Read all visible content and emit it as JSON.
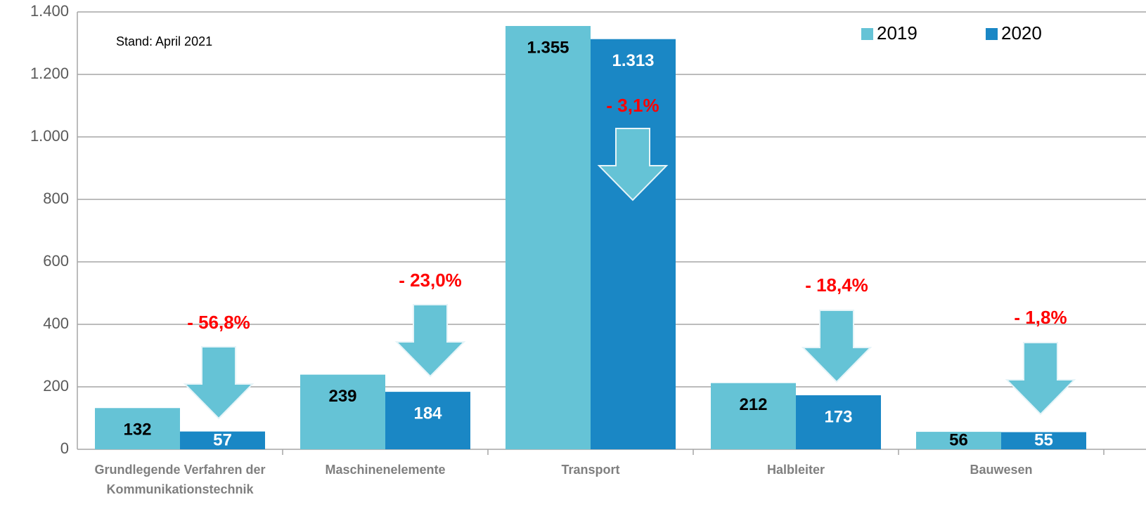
{
  "chart_data": {
    "type": "bar",
    "note": "Stand: April 2021",
    "categories": [
      "Grundlegende Verfahren der\nKommunikationstechnik",
      "Maschinenelemente",
      "Transport",
      "Halbleiter",
      "Bauwesen"
    ],
    "series": [
      {
        "name": "2019",
        "color": "#65c3d6",
        "values": [
          132,
          239,
          1355,
          212,
          56
        ],
        "value_labels": [
          "132",
          "239",
          "1.355",
          "212",
          "56"
        ]
      },
      {
        "name": "2020",
        "color": "#1a87c5",
        "values": [
          57,
          184,
          1313,
          173,
          55
        ],
        "value_labels": [
          "57",
          "184",
          "1.313",
          "173",
          "55"
        ]
      }
    ],
    "annotations": [
      "- 56,8%",
      "- 23,0%",
      "- 3,1%",
      "- 18,4%",
      "- 1,8%"
    ],
    "ylim": [
      0,
      1400
    ],
    "yticks": [
      0,
      200,
      400,
      600,
      800,
      {
        "value": 1000,
        "label": "1.000"
      },
      {
        "value": 1200,
        "label": "1.200"
      },
      {
        "value": 1400,
        "label": "1.400"
      }
    ],
    "grid": true,
    "legend": "top-right"
  }
}
